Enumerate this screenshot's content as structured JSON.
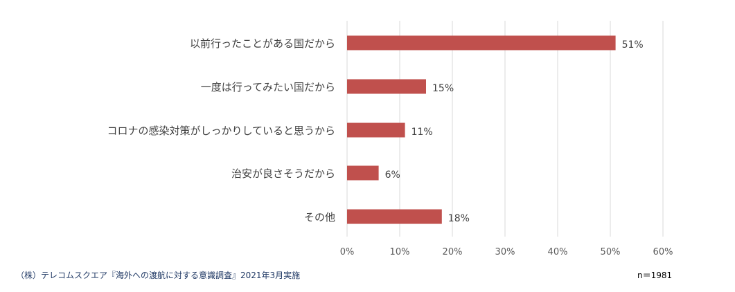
{
  "chart_data": {
    "type": "bar",
    "orientation": "horizontal",
    "categories": [
      "以前行ったことがある国だから",
      "一度は行ってみたい国だから",
      "コロナの感染対策がしっかりしていると思うから",
      "治安が良さそうだから",
      "その他"
    ],
    "values": [
      51,
      15,
      11,
      6,
      18
    ],
    "value_labels": [
      "51%",
      "15%",
      "11%",
      "6%",
      "18%"
    ],
    "xlim": [
      0,
      60
    ],
    "xticks": [
      "0%",
      "10%",
      "20%",
      "30%",
      "40%",
      "50%",
      "60%"
    ],
    "grid": true,
    "bar_color": "#c0504d"
  },
  "footer": {
    "source": "（株）テレコムスクエア『海外への渡航に対する意識調査』2021年3月実施",
    "n": "n＝1981"
  }
}
